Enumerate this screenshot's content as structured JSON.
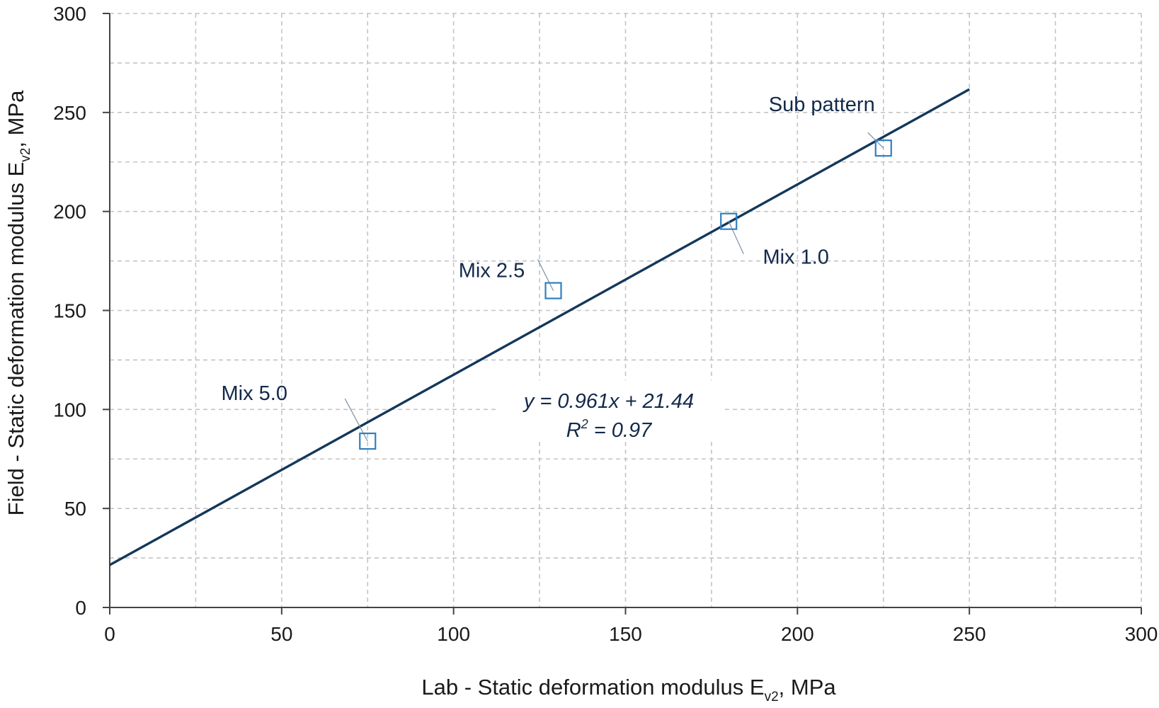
{
  "chart_data": {
    "type": "scatter",
    "title": "",
    "xlabel": {
      "main": "Lab - Static deformation modulus E",
      "sub": "v2",
      "tail": ", MPa"
    },
    "ylabel": {
      "main": "Field - Static deformation modulus E",
      "sub": "v2",
      "tail": ", MPa"
    },
    "xlim": [
      0,
      300
    ],
    "ylim": [
      0,
      300
    ],
    "x_ticks": [
      "0",
      "50",
      "100",
      "150",
      "200",
      "250",
      "300"
    ],
    "y_ticks": [
      "0",
      "50",
      "100",
      "150",
      "200",
      "250",
      "300"
    ],
    "grid": true,
    "grid_minor_step": 25,
    "series": [
      {
        "marker": "open-square",
        "color": "#2f7fc1",
        "points": [
          {
            "label": "Mix 5.0",
            "x": 75,
            "y": 84
          },
          {
            "label": "Mix 2.5",
            "x": 129,
            "y": 160
          },
          {
            "label": "Mix 1.0",
            "x": 180,
            "y": 195
          },
          {
            "label": "Sub pattern",
            "x": 225,
            "y": 232
          }
        ]
      }
    ],
    "trendline": {
      "slope": 0.961,
      "intercept": 21.44,
      "x_range": [
        0,
        250
      ],
      "color": "#13385a",
      "equation": "y = 0.961x + 21.44",
      "r2_prefix": "R",
      "r2_sup": "2",
      "r2_suffix": " = 0.97"
    }
  }
}
